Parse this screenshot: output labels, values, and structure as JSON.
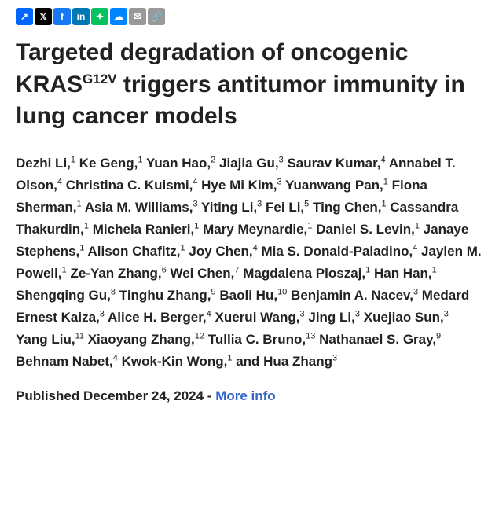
{
  "social": {
    "share": {
      "bg": "#0066ff",
      "glyph": "↗"
    },
    "x": {
      "bg": "#000000",
      "glyph": "𝕏"
    },
    "facebook": {
      "bg": "#1877f2",
      "glyph": "f"
    },
    "linkedin": {
      "bg": "#0077b5",
      "glyph": "in"
    },
    "wechat": {
      "bg": "#07c160",
      "glyph": "✦"
    },
    "bluesky": {
      "bg": "#0085ff",
      "glyph": "☁"
    },
    "email": {
      "bg": "#999999",
      "glyph": "✉"
    },
    "link": {
      "bg": "#999999",
      "glyph": "🔗"
    }
  },
  "article": {
    "title_pre": "Targeted degradation of oncogenic KRAS",
    "title_sup": "G12V",
    "title_post": " triggers antitumor immunity in lung cancer models",
    "authors": [
      {
        "name": "Dezhi Li",
        "aff": "1"
      },
      {
        "name": "Ke Geng",
        "aff": "1"
      },
      {
        "name": "Yuan Hao",
        "aff": "2"
      },
      {
        "name": "Jiajia Gu",
        "aff": "3"
      },
      {
        "name": "Saurav Kumar",
        "aff": "4"
      },
      {
        "name": "Annabel T. Olson",
        "aff": "4"
      },
      {
        "name": "Christina C. Kuismi",
        "aff": "4"
      },
      {
        "name": "Hye Mi Kim",
        "aff": "3"
      },
      {
        "name": "Yuanwang Pan",
        "aff": "1"
      },
      {
        "name": "Fiona Sherman",
        "aff": "1"
      },
      {
        "name": "Asia M. Williams",
        "aff": "3"
      },
      {
        "name": "Yiting Li",
        "aff": "3"
      },
      {
        "name": "Fei Li",
        "aff": "5"
      },
      {
        "name": "Ting Chen",
        "aff": "1"
      },
      {
        "name": "Cassandra Thakurdin",
        "aff": "1"
      },
      {
        "name": "Michela Ranieri",
        "aff": "1"
      },
      {
        "name": "Mary Meynardie",
        "aff": "1"
      },
      {
        "name": "Daniel S. Levin",
        "aff": "1"
      },
      {
        "name": "Janaye Stephens",
        "aff": "1"
      },
      {
        "name": "Alison Chafitz",
        "aff": "1"
      },
      {
        "name": "Joy Chen",
        "aff": "4"
      },
      {
        "name": "Mia S. Donald-Paladino",
        "aff": "4"
      },
      {
        "name": "Jaylen M. Powell",
        "aff": "1"
      },
      {
        "name": "Ze-Yan Zhang",
        "aff": "6"
      },
      {
        "name": "Wei Chen",
        "aff": "7"
      },
      {
        "name": "Magdalena Ploszaj",
        "aff": "1"
      },
      {
        "name": "Han Han",
        "aff": "1"
      },
      {
        "name": "Shengqing Gu",
        "aff": "8"
      },
      {
        "name": "Tinghu Zhang",
        "aff": "9"
      },
      {
        "name": "Baoli Hu",
        "aff": "10"
      },
      {
        "name": "Benjamin A. Nacev",
        "aff": "3"
      },
      {
        "name": "Medard Ernest Kaiza",
        "aff": "3"
      },
      {
        "name": "Alice H. Berger",
        "aff": "4"
      },
      {
        "name": "Xuerui Wang",
        "aff": "3"
      },
      {
        "name": "Jing Li",
        "aff": "3"
      },
      {
        "name": "Xuejiao Sun",
        "aff": "3"
      },
      {
        "name": "Yang Liu",
        "aff": "11"
      },
      {
        "name": "Xiaoyang Zhang",
        "aff": "12"
      },
      {
        "name": "Tullia C. Bruno",
        "aff": "13"
      },
      {
        "name": "Nathanael S. Gray",
        "aff": "9"
      },
      {
        "name": "Behnam Nabet",
        "aff": "4"
      },
      {
        "name": "Kwok-Kin Wong",
        "aff": "1"
      }
    ],
    "last_author": {
      "name": "Hua Zhang",
      "aff": "3"
    },
    "published_label": "Published ",
    "published_date": "December 24, 2024",
    "separator": " - ",
    "more_info": "More info"
  }
}
